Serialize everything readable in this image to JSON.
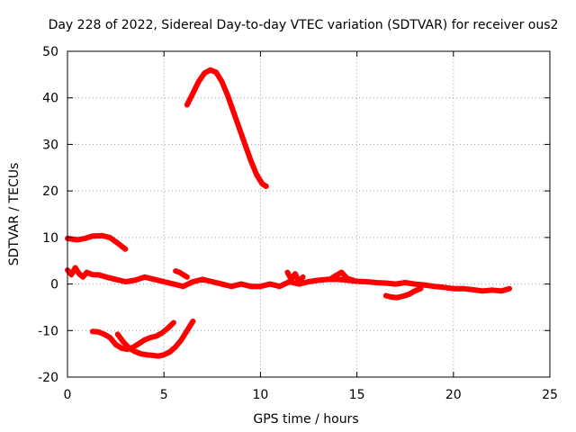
{
  "chart_data": {
    "type": "line",
    "title": "Day 228 of 2022, Sidereal Day-to-day VTEC variation (SDTVAR) for receiver ous2",
    "xlabel": "GPS time / hours",
    "ylabel": "SDTVAR / TECUs",
    "xlim": [
      0,
      25
    ],
    "ylim": [
      -20,
      50
    ],
    "xticks": [
      0,
      5,
      10,
      15,
      20,
      25
    ],
    "yticks": [
      -20,
      -10,
      0,
      10,
      20,
      30,
      40,
      50
    ],
    "grid": true,
    "legend": "none",
    "series_color": "#ff0000",
    "series": [
      {
        "name": "arc-peak",
        "x": [
          6.2,
          6.5,
          6.8,
          7.1,
          7.4,
          7.7,
          8.0,
          8.3,
          8.6,
          8.9,
          9.2,
          9.5,
          9.8,
          10.1,
          10.3
        ],
        "y": [
          38.5,
          41,
          43.5,
          45.3,
          46,
          45.5,
          43.5,
          40.5,
          37,
          33.5,
          30,
          26.5,
          23.5,
          21.5,
          21
        ]
      },
      {
        "name": "arc-upper-left",
        "x": [
          0.0,
          0.5,
          0.9,
          1.3,
          1.8,
          2.2,
          2.6,
          3.0
        ],
        "y": [
          9.8,
          9.5,
          9.8,
          10.3,
          10.4,
          10.0,
          8.8,
          7.5
        ]
      },
      {
        "name": "arc-main",
        "x": [
          0.0,
          0.2,
          0.4,
          0.6,
          0.8,
          1.0,
          1.3,
          1.6,
          2.0,
          2.5,
          3.0,
          3.5,
          4.0,
          4.5,
          5.0,
          5.5,
          6.0,
          6.5,
          7.0,
          7.5,
          8.0,
          8.5,
          9.0,
          9.5,
          10.0,
          10.5,
          11.0,
          11.5,
          12.0,
          12.5,
          13.0,
          13.5,
          14.0,
          14.5,
          15.0,
          15.5,
          16.0,
          16.5,
          17.0,
          17.5,
          18.0,
          18.5,
          19.0,
          19.5,
          20.0,
          20.5,
          21.0,
          21.5,
          22.0,
          22.5,
          22.9
        ],
        "y": [
          3.0,
          2.0,
          3.5,
          2.2,
          1.5,
          2.5,
          2.0,
          2.0,
          1.5,
          1.0,
          0.5,
          0.8,
          1.5,
          1.0,
          0.5,
          0.0,
          -0.5,
          0.5,
          1.0,
          0.5,
          0.0,
          -0.5,
          0.0,
          -0.5,
          -0.5,
          0.0,
          -0.5,
          0.5,
          0.0,
          0.5,
          0.8,
          1.0,
          1.0,
          0.8,
          0.6,
          0.5,
          0.3,
          0.2,
          0.0,
          0.3,
          0.0,
          -0.2,
          -0.5,
          -0.7,
          -1.0,
          -1.0,
          -1.2,
          -1.5,
          -1.3,
          -1.5,
          -1.0
        ]
      },
      {
        "name": "arc-spike-5-8",
        "x": [
          5.6,
          5.8,
          6.0,
          6.2
        ],
        "y": [
          2.8,
          2.5,
          2.0,
          1.5
        ]
      },
      {
        "name": "arc-spike-11-7",
        "x": [
          11.4,
          11.6,
          11.8,
          12.0,
          12.2
        ],
        "y": [
          2.5,
          1.0,
          2.2,
          0.5,
          1.5
        ]
      },
      {
        "name": "arc-spike-14-2",
        "x": [
          13.6,
          13.9,
          14.2,
          14.5,
          14.8
        ],
        "y": [
          1.0,
          1.8,
          2.5,
          1.2,
          0.8
        ]
      },
      {
        "name": "arc-dip-17",
        "x": [
          16.5,
          16.8,
          17.1,
          17.4,
          17.7,
          18.0,
          18.3
        ],
        "y": [
          -2.5,
          -2.8,
          -2.9,
          -2.6,
          -2.2,
          -1.5,
          -1.0
        ]
      },
      {
        "name": "arc-lower-1",
        "x": [
          1.3,
          1.6,
          1.9,
          2.2,
          2.5,
          2.8,
          3.1,
          3.4,
          3.7,
          4.0,
          4.3,
          4.6,
          4.9,
          5.2,
          5.5
        ],
        "y": [
          -10.2,
          -10.3,
          -10.8,
          -11.5,
          -13.0,
          -13.8,
          -14.0,
          -13.6,
          -12.8,
          -12.0,
          -11.5,
          -11.2,
          -10.5,
          -9.5,
          -8.3
        ]
      },
      {
        "name": "arc-lower-2",
        "x": [
          2.6,
          2.9,
          3.2,
          3.5,
          3.8,
          4.1,
          4.4,
          4.7,
          5.0,
          5.3,
          5.6,
          5.9,
          6.2,
          6.5
        ],
        "y": [
          -10.8,
          -12.5,
          -13.8,
          -14.5,
          -15.0,
          -15.2,
          -15.3,
          -15.5,
          -15.2,
          -14.6,
          -13.5,
          -12.0,
          -10.0,
          -8.0
        ]
      }
    ]
  }
}
